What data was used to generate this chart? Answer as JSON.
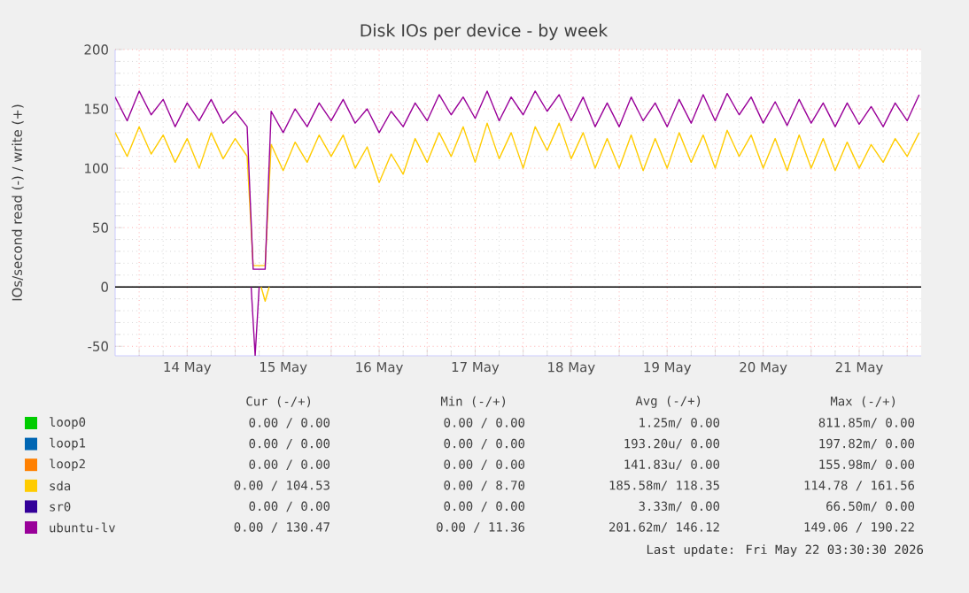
{
  "chart_data": {
    "type": "line",
    "title": "Disk IOs per device - by week",
    "ylabel": "IOs/second read (-) / write (+)",
    "xlim": [
      "2026-05-13T18:00",
      "2026-05-22T03:30"
    ],
    "ylim": [
      -58,
      200
    ],
    "yticks": [
      -50,
      0,
      50,
      100,
      150,
      200
    ],
    "xticks": [
      {
        "value": "2026-05-14T00:00",
        "label": null
      },
      {
        "value": "2026-05-14T12:00",
        "label": "14 May"
      },
      {
        "value": "2026-05-15T00:00",
        "label": null
      },
      {
        "value": "2026-05-15T12:00",
        "label": "15 May"
      },
      {
        "value": "2026-05-16T00:00",
        "label": null
      },
      {
        "value": "2026-05-16T12:00",
        "label": "16 May"
      },
      {
        "value": "2026-05-17T00:00",
        "label": null
      },
      {
        "value": "2026-05-17T12:00",
        "label": "17 May"
      },
      {
        "value": "2026-05-18T00:00",
        "label": null
      },
      {
        "value": "2026-05-18T12:00",
        "label": "18 May"
      },
      {
        "value": "2026-05-19T00:00",
        "label": null
      },
      {
        "value": "2026-05-19T12:00",
        "label": "19 May"
      },
      {
        "value": "2026-05-20T00:00",
        "label": null
      },
      {
        "value": "2026-05-20T12:00",
        "label": "20 May"
      },
      {
        "value": "2026-05-21T00:00",
        "label": null
      },
      {
        "value": "2026-05-21T12:00",
        "label": "21 May"
      },
      {
        "value": "2026-05-22T00:00",
        "label": null
      }
    ],
    "grid": true,
    "legend": "bottom",
    "marker": "none",
    "line_style": "solid",
    "x": [
      "2026-05-13T18:00",
      "2026-05-13T21:00",
      "2026-05-14T00:00",
      "2026-05-14T03:00",
      "2026-05-14T06:00",
      "2026-05-14T09:00",
      "2026-05-14T12:00",
      "2026-05-14T15:00",
      "2026-05-14T18:00",
      "2026-05-14T21:00",
      "2026-05-15T00:00",
      "2026-05-15T03:00",
      "2026-05-15T04:30",
      "2026-05-15T06:00",
      "2026-05-15T07:30",
      "2026-05-15T09:00",
      "2026-05-15T12:00",
      "2026-05-15T15:00",
      "2026-05-15T18:00",
      "2026-05-15T21:00",
      "2026-05-16T00:00",
      "2026-05-16T03:00",
      "2026-05-16T06:00",
      "2026-05-16T09:00",
      "2026-05-16T12:00",
      "2026-05-16T15:00",
      "2026-05-16T18:00",
      "2026-05-16T21:00",
      "2026-05-17T00:00",
      "2026-05-17T03:00",
      "2026-05-17T06:00",
      "2026-05-17T09:00",
      "2026-05-17T12:00",
      "2026-05-17T15:00",
      "2026-05-17T18:00",
      "2026-05-17T21:00",
      "2026-05-18T00:00",
      "2026-05-18T03:00",
      "2026-05-18T06:00",
      "2026-05-18T09:00",
      "2026-05-18T12:00",
      "2026-05-18T15:00",
      "2026-05-18T18:00",
      "2026-05-18T21:00",
      "2026-05-19T00:00",
      "2026-05-19T03:00",
      "2026-05-19T06:00",
      "2026-05-19T09:00",
      "2026-05-19T12:00",
      "2026-05-19T15:00",
      "2026-05-19T18:00",
      "2026-05-19T21:00",
      "2026-05-20T00:00",
      "2026-05-20T03:00",
      "2026-05-20T06:00",
      "2026-05-20T09:00",
      "2026-05-20T12:00",
      "2026-05-20T15:00",
      "2026-05-20T18:00",
      "2026-05-20T21:00",
      "2026-05-21T00:00",
      "2026-05-21T03:00",
      "2026-05-21T06:00",
      "2026-05-21T09:00",
      "2026-05-21T12:00",
      "2026-05-21T15:00",
      "2026-05-21T18:00",
      "2026-05-21T21:00",
      "2026-05-22T00:00",
      "2026-05-22T03:00"
    ],
    "series": [
      {
        "name": "loop0",
        "color": "#00cc00",
        "values": [
          null,
          null,
          null,
          null,
          null,
          null,
          null,
          null,
          null,
          null,
          null,
          null,
          null,
          null,
          null,
          null,
          null,
          null,
          null,
          null,
          null,
          null,
          null,
          null,
          null,
          null,
          null,
          null,
          null,
          null,
          null,
          null,
          null,
          null,
          null,
          null,
          null,
          null,
          null,
          null,
          null,
          null,
          null,
          null,
          null,
          null,
          null,
          null,
          null,
          null,
          null,
          null,
          null,
          null,
          null,
          null,
          null,
          null,
          null,
          null,
          null,
          null,
          null,
          null,
          null,
          null,
          null,
          null,
          null,
          null
        ]
      },
      {
        "name": "loop1",
        "color": "#0066b3",
        "values": [
          null,
          null,
          null,
          null,
          null,
          null,
          null,
          null,
          null,
          null,
          null,
          null,
          null,
          null,
          null,
          null,
          null,
          null,
          null,
          null,
          null,
          null,
          null,
          null,
          null,
          null,
          null,
          null,
          null,
          null,
          null,
          null,
          null,
          null,
          null,
          null,
          null,
          null,
          null,
          null,
          null,
          null,
          null,
          null,
          null,
          null,
          null,
          null,
          null,
          null,
          null,
          null,
          null,
          null,
          null,
          null,
          null,
          null,
          null,
          null,
          null,
          null,
          null,
          null,
          null,
          null,
          null,
          null,
          null,
          null
        ]
      },
      {
        "name": "loop2",
        "color": "#ff8000",
        "values": [
          null,
          null,
          null,
          null,
          null,
          null,
          null,
          null,
          null,
          null,
          null,
          null,
          null,
          null,
          null,
          null,
          null,
          null,
          null,
          null,
          null,
          null,
          null,
          null,
          null,
          null,
          null,
          null,
          null,
          null,
          null,
          null,
          null,
          null,
          null,
          null,
          null,
          null,
          null,
          null,
          null,
          null,
          null,
          null,
          null,
          null,
          null,
          null,
          null,
          null,
          null,
          null,
          null,
          null,
          null,
          null,
          null,
          null,
          null,
          null,
          null,
          null,
          null,
          null,
          null,
          null,
          null,
          null,
          null,
          null
        ]
      },
      {
        "name": "sda",
        "color": "#ffcc00",
        "values": [
          130,
          110,
          135,
          112,
          128,
          105,
          125,
          100,
          130,
          108,
          125,
          110,
          18,
          18,
          18,
          120,
          98,
          122,
          105,
          128,
          110,
          128,
          100,
          118,
          88,
          112,
          95,
          125,
          105,
          130,
          110,
          135,
          105,
          138,
          108,
          130,
          100,
          135,
          115,
          138,
          108,
          130,
          100,
          125,
          100,
          128,
          98,
          125,
          100,
          130,
          105,
          128,
          100,
          132,
          110,
          128,
          100,
          125,
          98,
          128,
          100,
          125,
          98,
          122,
          100,
          120,
          105,
          125,
          110,
          130
        ]
      },
      {
        "name": "sr0",
        "color": "#330099",
        "values": [
          null,
          null,
          null,
          null,
          null,
          null,
          null,
          null,
          null,
          null,
          null,
          null,
          null,
          null,
          null,
          null,
          null,
          null,
          null,
          null,
          null,
          null,
          null,
          null,
          null,
          null,
          null,
          null,
          null,
          null,
          null,
          null,
          null,
          null,
          null,
          null,
          null,
          null,
          null,
          null,
          null,
          null,
          null,
          null,
          null,
          null,
          null,
          null,
          null,
          null,
          null,
          null,
          null,
          null,
          null,
          null,
          null,
          null,
          null,
          null,
          null,
          null,
          null,
          null,
          null,
          null,
          null,
          null,
          null,
          null
        ]
      },
      {
        "name": "ubuntu-lv",
        "color": "#990099",
        "values": [
          160,
          140,
          165,
          145,
          158,
          135,
          155,
          140,
          158,
          138,
          148,
          135,
          15,
          15,
          15,
          148,
          130,
          150,
          135,
          155,
          140,
          158,
          138,
          150,
          130,
          148,
          135,
          155,
          140,
          162,
          145,
          160,
          142,
          165,
          140,
          160,
          145,
          165,
          148,
          162,
          140,
          160,
          135,
          155,
          135,
          160,
          140,
          155,
          135,
          158,
          138,
          162,
          140,
          163,
          145,
          160,
          138,
          156,
          136,
          158,
          138,
          155,
          135,
          155,
          137,
          152,
          135,
          155,
          140,
          162
        ]
      },
      {
        "color": "#ffcc00",
        "x": [
          "2026-05-15T06:30",
          "2026-05-15T07:30",
          "2026-05-15T08:30"
        ],
        "values": [
          0,
          -12,
          0
        ]
      },
      {
        "color": "#990099",
        "x": [
          "2026-05-15T04:00",
          "2026-05-15T05:00",
          "2026-05-15T06:00"
        ],
        "values": [
          0,
          -58,
          0
        ]
      }
    ],
    "ref_lines": [
      {
        "axis": "y",
        "value": 0,
        "color": "#000000"
      }
    ],
    "annotations": [
      "Cur (-/+)",
      "Min (-/+)",
      "Avg (-/+)",
      "Max (-/+)",
      "0.00 /   0.00",
      "0.00 /   0.00",
      "1.25m/   0.00",
      "811.85m/   0.00",
      "0.00 /   0.00",
      "0.00 /   0.00",
      "193.20u/   0.00",
      "197.82m/   0.00",
      "0.00 /   0.00",
      "0.00 /   0.00",
      "141.83u/   0.00",
      "155.98m/   0.00",
      "0.00 / 104.53",
      "0.00 /   8.70",
      "185.58m/ 118.35",
      "114.78 / 161.56",
      "0.00 /   0.00",
      "0.00 /   0.00",
      "3.33m/   0.00",
      "66.50m/   0.00",
      "0.00 / 130.47",
      "0.00 /  11.36",
      "201.62m/ 146.12",
      "149.06 / 190.22",
      "Last update: Fri May 22 03:30:30 2026"
    ]
  }
}
